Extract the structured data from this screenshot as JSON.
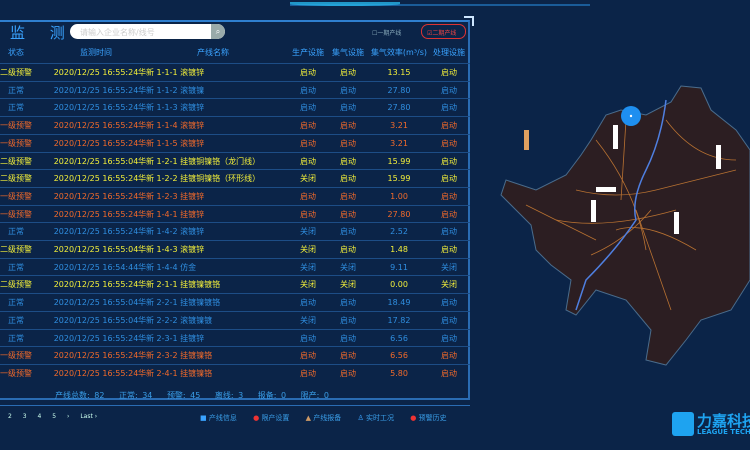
{
  "header": {
    "title": "监 测",
    "search_placeholder": "请输入企业名称/线号",
    "search_icon": "magnifier",
    "filter_1": "一期产线",
    "filter_2": "二期产线"
  },
  "colors": {
    "yellow": "#f4f03a",
    "red": "#f26a2a",
    "blue": "#2f8ee0",
    "background": "#0b2448"
  },
  "table": {
    "headers": [
      "状态",
      "监测时间",
      "产线名称",
      "生产设施",
      "集气设施",
      "集气效率(m³/s)",
      "处理设施"
    ],
    "rows": [
      {
        "level": "yellow",
        "cells": [
          "二级预警",
          "2020/12/25 16:55:24",
          "华新 1-1-1 滚镀锌",
          "启动",
          "启动",
          "13.15",
          "启动"
        ]
      },
      {
        "level": "blue",
        "cells": [
          "正常",
          "2020/12/25 16:55:24",
          "华新 1-1-2 滚镀镍",
          "启动",
          "启动",
          "27.80",
          "启动"
        ]
      },
      {
        "level": "blue",
        "cells": [
          "正常",
          "2020/12/25 16:55:24",
          "华新 1-1-3 滚镀锌",
          "启动",
          "启动",
          "27.80",
          "启动"
        ]
      },
      {
        "level": "red",
        "cells": [
          "一级预警",
          "2020/12/25 16:55:24",
          "华新 1-1-4 滚镀锌",
          "启动",
          "启动",
          "3.21",
          "启动"
        ]
      },
      {
        "level": "red",
        "cells": [
          "一级预警",
          "2020/12/25 16:55:24",
          "华新 1-1-5 滚镀锌",
          "启动",
          "启动",
          "3.21",
          "启动"
        ]
      },
      {
        "level": "yellow",
        "cells": [
          "二级预警",
          "2020/12/25 16:55:04",
          "华新 1-2-1 挂镀铜镍铬（龙门线）",
          "启动",
          "启动",
          "15.99",
          "启动"
        ]
      },
      {
        "level": "yellow",
        "cells": [
          "二级预警",
          "2020/12/25 16:55:24",
          "华新 1-2-2 挂镀铜镍铬（环形线）",
          "关闭",
          "启动",
          "15.99",
          "启动"
        ]
      },
      {
        "level": "red",
        "cells": [
          "一级预警",
          "2020/12/25 16:55:24",
          "华新 1-2-3 挂镀锌",
          "启动",
          "启动",
          "1.00",
          "启动"
        ]
      },
      {
        "level": "red",
        "cells": [
          "一级预警",
          "2020/12/25 16:55:24",
          "华新 1-4-1 挂镀锌",
          "启动",
          "启动",
          "27.80",
          "启动"
        ]
      },
      {
        "level": "blue",
        "cells": [
          "正常",
          "2020/12/25 16:55:24",
          "华新 1-4-2 滚镀锌",
          "关闭",
          "启动",
          "2.52",
          "启动"
        ]
      },
      {
        "level": "yellow",
        "cells": [
          "二级预警",
          "2020/12/25 16:55:04",
          "华新 1-4-3 滚镀锌",
          "关闭",
          "启动",
          "1.48",
          "启动"
        ]
      },
      {
        "level": "blue",
        "cells": [
          "正常",
          "2020/12/25 16:54:44",
          "华新 1-4-4 仿金",
          "关闭",
          "关闭",
          "9.11",
          "关闭"
        ]
      },
      {
        "level": "yellow",
        "cells": [
          "二级预警",
          "2020/12/25 16:55:24",
          "华新 2-1-1 挂镀镍镀铬",
          "关闭",
          "关闭",
          "0.00",
          "关闭"
        ]
      },
      {
        "level": "blue",
        "cells": [
          "正常",
          "2020/12/25 16:55:04",
          "华新 2-2-1 挂镀镍镀铬",
          "启动",
          "启动",
          "18.49",
          "启动"
        ]
      },
      {
        "level": "blue",
        "cells": [
          "正常",
          "2020/12/25 16:55:04",
          "华新 2-2-2 滚镀镍镀",
          "关闭",
          "启动",
          "17.82",
          "启动"
        ]
      },
      {
        "level": "blue",
        "cells": [
          "正常",
          "2020/12/25 16:55:24",
          "华新 2-3-1 挂镀锌",
          "启动",
          "启动",
          "6.56",
          "启动"
        ]
      },
      {
        "level": "red",
        "cells": [
          "一级预警",
          "2020/12/25 16:55:24",
          "华新 2-3-2 挂镀镍铬",
          "启动",
          "启动",
          "6.56",
          "启动"
        ]
      },
      {
        "level": "red",
        "cells": [
          "一级预警",
          "2020/12/25 16:55:24",
          "华新 2-4-1 挂镀镍铬",
          "启动",
          "启动",
          "5.80",
          "启动"
        ]
      }
    ]
  },
  "stats": {
    "total": "产线总数: 82",
    "normal": "正常: 34",
    "warning": "预警: 45",
    "offline": "离线: 3",
    "maintenance": "报备: 0",
    "stopped": "限产: 0"
  },
  "pagination": {
    "pages": [
      "2",
      "3",
      "4",
      "5"
    ],
    "next": "›",
    "last": "Last ›"
  },
  "legend": [
    {
      "label": "产线信息",
      "icon": "info-square"
    },
    {
      "label": "限产设置",
      "icon": "red-circle"
    },
    {
      "label": "产线报备",
      "icon": "warning-triangle"
    },
    {
      "label": "实时工况",
      "icon": "person"
    },
    {
      "label": "预警历史",
      "icon": "red-dot"
    }
  ],
  "logo": {
    "name": "力嘉科技",
    "subtitle": "LEAGUE TECH"
  }
}
